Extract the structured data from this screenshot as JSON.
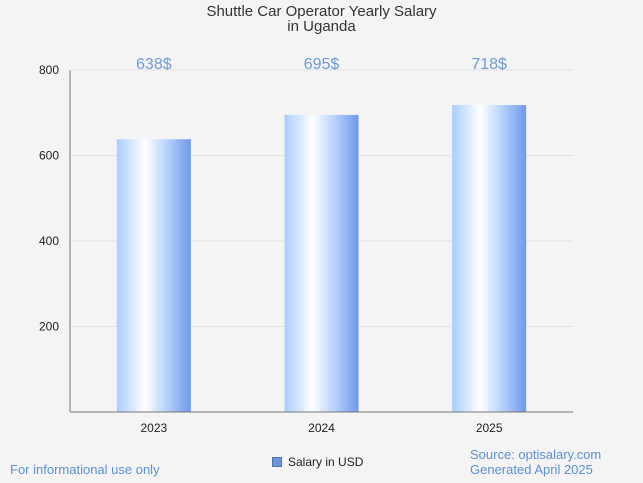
{
  "chart_data": {
    "type": "bar",
    "title_line1": "Shuttle Car Operator Yearly Salary",
    "title_line2": "in Uganda",
    "categories": [
      "2023",
      "2024",
      "2025"
    ],
    "series": [
      {
        "name": "Salary in USD",
        "values": [
          638,
          695,
          718
        ],
        "labels": [
          "638$",
          "695$",
          "718$"
        ]
      }
    ],
    "ylim": [
      0,
      800
    ],
    "yticks": [
      200,
      400,
      600,
      800
    ],
    "grid": true,
    "legend_position": "bottom",
    "colors": {
      "bar_light": "#ffffff",
      "bar_mid": "#b9d6fb",
      "bar_dark": "#6e98ec",
      "label": "#6f9ad8",
      "grid": "#e2e2e2",
      "axis": "#777777"
    }
  },
  "footer": {
    "note": "For informational use only",
    "source": "Source: optisalary.com",
    "generated": "Generated April 2025"
  }
}
